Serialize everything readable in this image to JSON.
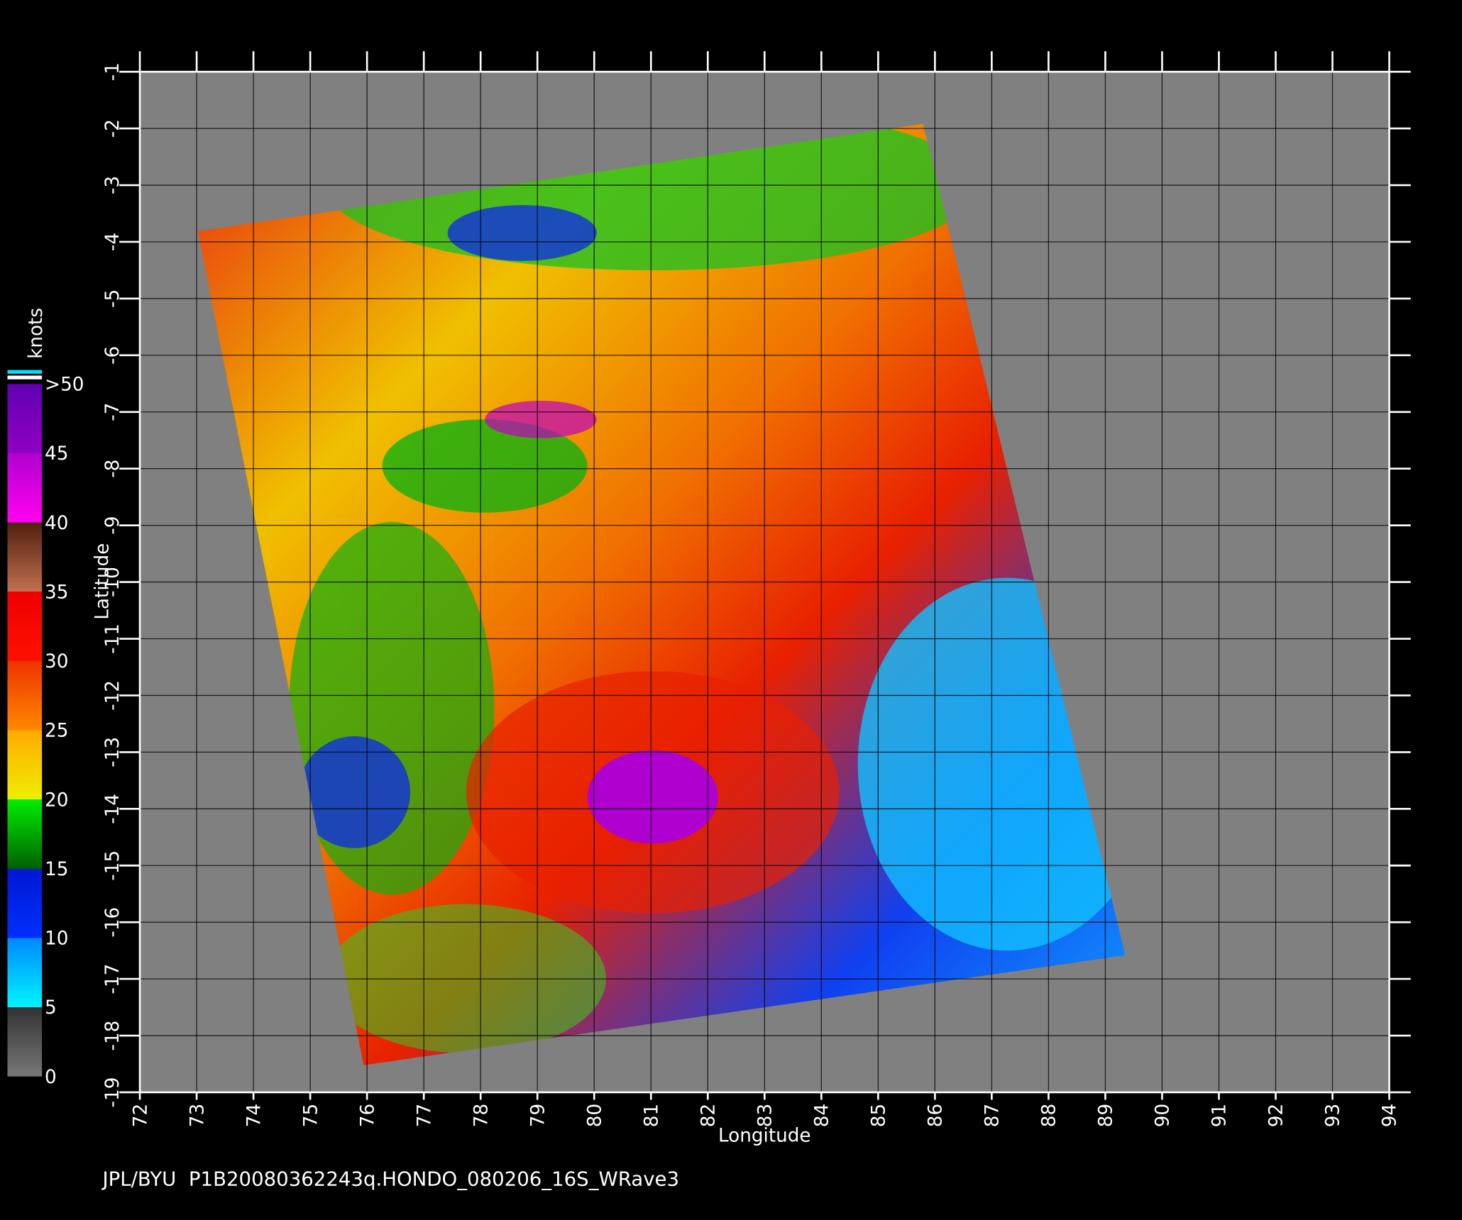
{
  "map": {
    "xlabel": "Longitude",
    "ylabel": "Latitude",
    "xlim": [
      72,
      94
    ],
    "ylim": [
      -19,
      -1
    ],
    "xticks": [
      72,
      73,
      74,
      75,
      76,
      77,
      78,
      79,
      80,
      81,
      82,
      83,
      84,
      85,
      86,
      87,
      88,
      89,
      90,
      91,
      92,
      93,
      94
    ],
    "yticks": [
      -1,
      -2,
      -3,
      -4,
      -5,
      -6,
      -7,
      -8,
      -9,
      -10,
      -11,
      -12,
      -13,
      -14,
      -15,
      -16,
      -17,
      -18,
      -19
    ]
  },
  "colorbar": {
    "title": "knots",
    "lim": [
      0,
      50
    ],
    "ticks": [
      0,
      5,
      10,
      15,
      20,
      25,
      30,
      35,
      40,
      45,
      {
        "value": 50,
        "label": ">50"
      }
    ]
  },
  "footer": "JPL/BYU  P1B20080362243q.HONDO_080206_16S_WRave3"
}
